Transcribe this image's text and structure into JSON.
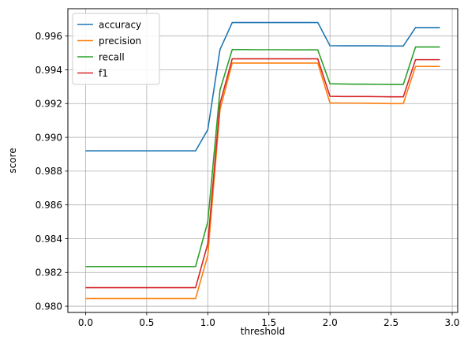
{
  "chart_data": {
    "type": "line",
    "title": "",
    "xlabel": "threshold",
    "ylabel": "score",
    "xlim": [
      -0.145,
      3.045
    ],
    "ylim": [
      0.97963,
      0.99762
    ],
    "xticks": [
      0.0,
      0.5,
      1.0,
      1.5,
      2.0,
      2.5,
      3.0
    ],
    "xtick_labels": [
      "0.0",
      "0.5",
      "1.0",
      "1.5",
      "2.0",
      "2.5",
      "3.0"
    ],
    "yticks": [
      0.98,
      0.982,
      0.984,
      0.986,
      0.988,
      0.99,
      0.992,
      0.994,
      0.996
    ],
    "ytick_labels": [
      "0.980",
      "0.982",
      "0.984",
      "0.986",
      "0.988",
      "0.990",
      "0.992",
      "0.994",
      "0.996"
    ],
    "grid": true,
    "legend": "top-left",
    "x": [
      0.0,
      0.1,
      0.2,
      0.3,
      0.4,
      0.5,
      0.6,
      0.7,
      0.8,
      0.9,
      1.0,
      1.1,
      1.2,
      1.3,
      1.4,
      1.5,
      1.6,
      1.7,
      1.8,
      1.9,
      2.0,
      2.1,
      2.2,
      2.3,
      2.4,
      2.5,
      2.6,
      2.7,
      2.8,
      2.9
    ],
    "series": [
      {
        "name": "accuracy",
        "color": "#1f77b4",
        "values": [
          0.9892,
          0.9892,
          0.9892,
          0.9892,
          0.9892,
          0.9892,
          0.9892,
          0.9892,
          0.9892,
          0.9892,
          0.99045,
          0.9952,
          0.9968,
          0.9968,
          0.9968,
          0.9968,
          0.9968,
          0.9968,
          0.9968,
          0.9968,
          0.99543,
          0.99542,
          0.99542,
          0.99542,
          0.99542,
          0.99541,
          0.99541,
          0.9965,
          0.9965,
          0.9965
        ]
      },
      {
        "name": "precision",
        "color": "#ff7f0e",
        "values": [
          0.98045,
          0.98045,
          0.98045,
          0.98045,
          0.98045,
          0.98045,
          0.98045,
          0.98045,
          0.98045,
          0.98045,
          0.983,
          0.99165,
          0.9944,
          0.9944,
          0.9944,
          0.9944,
          0.9944,
          0.9944,
          0.9944,
          0.9944,
          0.99204,
          0.99203,
          0.99203,
          0.99202,
          0.99201,
          0.992,
          0.992,
          0.9942,
          0.9942,
          0.9942
        ]
      },
      {
        "name": "recall",
        "color": "#2ca02c",
        "values": [
          0.98235,
          0.98235,
          0.98235,
          0.98235,
          0.98235,
          0.98235,
          0.98235,
          0.98235,
          0.98235,
          0.98235,
          0.985,
          0.9928,
          0.9952,
          0.9952,
          0.99519,
          0.99519,
          0.99519,
          0.99518,
          0.99518,
          0.99518,
          0.99317,
          0.99316,
          0.99315,
          0.99315,
          0.99314,
          0.99313,
          0.99313,
          0.99535,
          0.99535,
          0.99535
        ]
      },
      {
        "name": "f1",
        "color": "#d62728",
        "values": [
          0.9811,
          0.9811,
          0.9811,
          0.9811,
          0.9811,
          0.9811,
          0.9811,
          0.9811,
          0.9811,
          0.9811,
          0.9837,
          0.992,
          0.99465,
          0.99465,
          0.99465,
          0.99465,
          0.99465,
          0.99465,
          0.99465,
          0.99465,
          0.99243,
          0.99242,
          0.99242,
          0.99242,
          0.99241,
          0.9924,
          0.9924,
          0.9946,
          0.9946,
          0.9946
        ]
      }
    ]
  }
}
